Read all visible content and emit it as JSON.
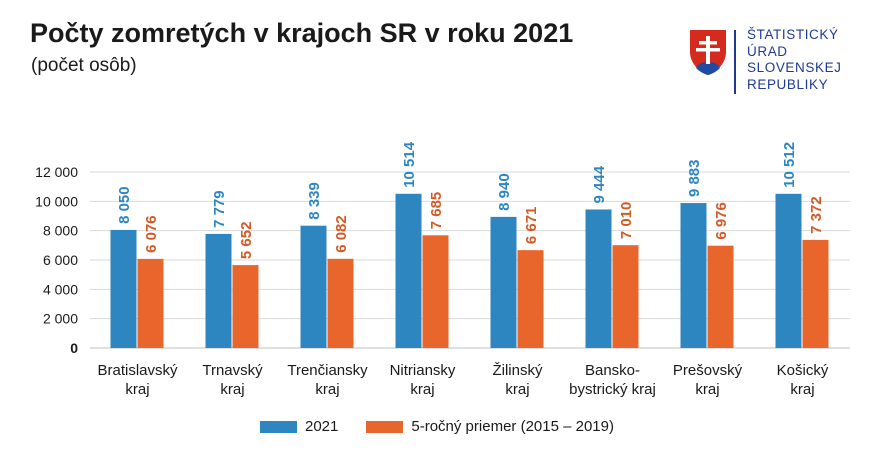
{
  "title": "Počty zomretých v krajoch SR v roku 2021",
  "subtitle": "(počet osôb)",
  "logo": {
    "lines": [
      "ŠTATISTICKÝ",
      "ÚRAD",
      "SLOVENSKEJ",
      "REPUBLIKY"
    ],
    "icon": "slovak-coat-of-arms-icon"
  },
  "colors": {
    "series_2021": "#2e86c1",
    "series_avg": "#e8662c",
    "label_2021": "#2e86c1",
    "label_avg": "#d45a25",
    "text": "#1a1a1a",
    "grid": "#d9d9d9"
  },
  "chart_data": {
    "type": "bar",
    "categories": [
      [
        "Bratislavský",
        "kraj"
      ],
      [
        "Trnavský",
        "kraj"
      ],
      [
        "Trenčiansky",
        "kraj"
      ],
      [
        "Nitriansky",
        "kraj"
      ],
      [
        "Žilinský",
        "kraj"
      ],
      [
        "Bansko-",
        "bystrický kraj"
      ],
      [
        "Prešovský",
        "kraj"
      ],
      [
        "Košický",
        "kraj"
      ]
    ],
    "series": [
      {
        "name": "2021",
        "values": [
          8050,
          7779,
          8339,
          10514,
          8940,
          9444,
          9883,
          10512
        ],
        "labels": [
          "8 050",
          "7 779",
          "8 339",
          "10 514",
          "8 940",
          "9 444",
          "9 883",
          "10 512"
        ]
      },
      {
        "name": "5-ročný priemer (2015 – 2019)",
        "values": [
          6076,
          5652,
          6082,
          7685,
          6671,
          7010,
          6976,
          7372
        ],
        "labels": [
          "6 076",
          "5 652",
          "6 082",
          "7 685",
          "6 671",
          "7 010",
          "6 976",
          "7 372"
        ]
      }
    ],
    "ylim": [
      0,
      12000
    ],
    "yticks": [
      0,
      2000,
      4000,
      6000,
      8000,
      10000,
      12000
    ],
    "ytick_labels": [
      "0",
      "2 000",
      "4 000",
      "6 000",
      "8 000",
      "10 000",
      "12 000"
    ],
    "grid": true,
    "legend_position": "bottom"
  }
}
